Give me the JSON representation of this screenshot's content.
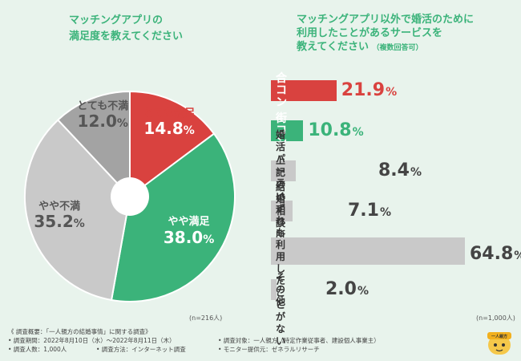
{
  "left_question": "マッチングアプリの\n満足度を教えてください",
  "right_question": {
    "line1": "マッチングアプリ以外で婚活のために",
    "line2": "利用したことがあるサービスを",
    "line3": "教えてください",
    "note": "（複数回答可）"
  },
  "left_n": "(n=216人)",
  "right_n": "(n=1,000人)",
  "colors": {
    "red": "#d9423f",
    "green": "#3bb37a",
    "gray_dark": "#a3a3a3",
    "gray_light": "#c9c9c9",
    "bg": "#e8f3ec"
  },
  "chart_data": [
    {
      "type": "pie",
      "title": "マッチングアプリの満足度を教えてください",
      "slices": [
        {
          "label": "とても満足",
          "value": 14.8
        },
        {
          "label": "やや満足",
          "value": 38.0
        },
        {
          "label": "やや不満",
          "value": 35.2
        },
        {
          "label": "とても不満",
          "value": 12.0
        }
      ],
      "n": "n=216人"
    },
    {
      "type": "bar",
      "orientation": "horizontal",
      "title": "マッチングアプリ以外で婚活のために利用したことがあるサービスを教えてください（複数回答可）",
      "categories": [
        "合コン",
        "街コン",
        "婚活パーティー",
        "結婚相談所",
        "上記のいずれも\n利用したことがない",
        "その他"
      ],
      "values": [
        21.9,
        10.8,
        8.4,
        7.1,
        64.8,
        2.0
      ],
      "xlim": [
        0,
        70
      ],
      "n": "n=1,000人"
    }
  ],
  "footer": {
    "line1": "《 調査概要：「一人親方の結婚事情」に関する調査》",
    "line2a": "• 調査期間：2022年8月10日（水）〜2022年8月11日（木）",
    "line2b": "• 調査対象：一人親方（特定作業従事者、建設個人事業主）",
    "line3a": "• 調査人数：1,000人",
    "line3b": "• 調査方法：インターネット調査",
    "line3c": "• モニター提供元：ゼネラルリサーチ"
  },
  "mascot_text": "一人親方"
}
